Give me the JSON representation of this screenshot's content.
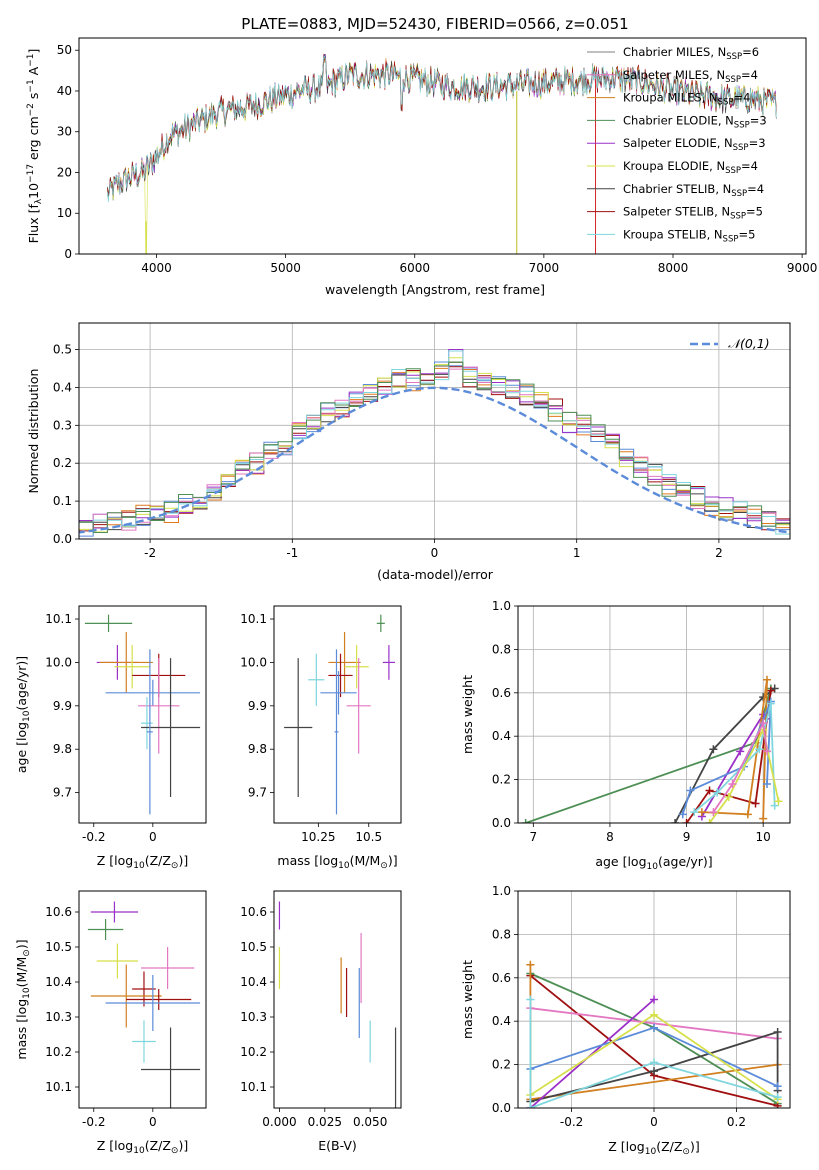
{
  "page_title": "PLATE=0883, MJD=52430, FIBERID=0566, z=0.051",
  "colors": {
    "Chabrier MILES": "#7f7f7f",
    "Salpeter MILES": "#e377c2",
    "Kroupa MILES": "#d17f1f",
    "Chabrier ELODIE": "#4e8f55",
    "Salpeter ELODIE": "#9b30c8",
    "Kroupa ELODIE": "#d6e04a",
    "Chabrier STELIB": "#444444",
    "Salpeter STELIB": "#a01010",
    "Kroupa STELIB": "#7fd6de",
    "extra_blue": "#5b8bd9",
    "extra_orange": "#e07a20",
    "normal_curve": "#5b8bd9"
  },
  "chart_data": [
    {
      "id": "spectrum",
      "type": "line",
      "title": "PLATE=0883, MJD=52430, FIBERID=0566, z=0.051",
      "xlabel": "wavelength [Angstrom, rest frame]",
      "ylabel": "Flux [f_λ10^-17 erg cm^-2 s^-1 A^-1]",
      "xlim": [
        3400,
        9030
      ],
      "ylim": [
        0,
        53
      ],
      "xticks": [
        4000,
        5000,
        6000,
        7000,
        8000,
        9000
      ],
      "yticks": [
        0,
        10,
        20,
        30,
        40,
        50
      ],
      "legend_position": "upper-right",
      "series": [
        {
          "name": "Chabrier MILES, N_SSP=6",
          "label_main": "Chabrier MILES, N",
          "label_sub": "SSP",
          "label_tail": "=6"
        },
        {
          "name": "Salpeter MILES, N_SSP=4",
          "label_main": "Salpeter MILES, N",
          "label_sub": "SSP",
          "label_tail": "=4"
        },
        {
          "name": "Kroupa MILES, N_SSP=4",
          "label_main": "Kroupa MILES, N",
          "label_sub": "SSP",
          "label_tail": "=4"
        },
        {
          "name": "Chabrier ELODIE, N_SSP=3",
          "label_main": "Chabrier ELODIE, N",
          "label_sub": "SSP",
          "label_tail": "=3"
        },
        {
          "name": "Salpeter ELODIE, N_SSP=3",
          "label_main": "Salpeter ELODIE, N",
          "label_sub": "SSP",
          "label_tail": "=3"
        },
        {
          "name": "Kroupa ELODIE, N_SSP=4",
          "label_main": "Kroupa ELODIE, N",
          "label_sub": "SSP",
          "label_tail": "=4"
        },
        {
          "name": "Chabrier STELIB, N_SSP=4",
          "label_main": "Chabrier STELIB, N",
          "label_sub": "SSP",
          "label_tail": "=4"
        },
        {
          "name": "Salpeter STELIB, N_SSP=5",
          "label_main": "Salpeter STELIB, N",
          "label_sub": "SSP",
          "label_tail": "=5"
        },
        {
          "name": "Kroupa STELIB, N_SSP=5",
          "label_main": "Kroupa STELIB, N",
          "label_sub": "SSP",
          "label_tail": "=5"
        }
      ],
      "continuum_shape": [
        [
          3600,
          14
        ],
        [
          3700,
          17
        ],
        [
          3800,
          19
        ],
        [
          3900,
          20
        ],
        [
          4000,
          24
        ],
        [
          4100,
          29
        ],
        [
          4300,
          32
        ],
        [
          4500,
          35
        ],
        [
          4700,
          36
        ],
        [
          4900,
          38
        ],
        [
          5100,
          40
        ],
        [
          5300,
          41
        ],
        [
          5500,
          44
        ],
        [
          5800,
          44
        ],
        [
          6000,
          43
        ],
        [
          6300,
          41
        ],
        [
          6600,
          41
        ],
        [
          7000,
          42
        ],
        [
          7400,
          43
        ],
        [
          7600,
          43
        ],
        [
          7800,
          42
        ],
        [
          8000,
          40
        ],
        [
          8200,
          39
        ],
        [
          8400,
          38
        ],
        [
          8600,
          38
        ],
        [
          8800,
          37
        ]
      ],
      "spikes": [
        [
          3920,
          0
        ],
        [
          6790,
          0
        ],
        [
          7400,
          0
        ]
      ]
    },
    {
      "id": "residuals",
      "type": "histogram",
      "xlabel": "(data-model)/error",
      "ylabel": "Normed distribution",
      "xlim": [
        -2.5,
        2.5
      ],
      "ylim": [
        0,
        0.57
      ],
      "xticks": [
        -2,
        -1,
        0,
        1,
        2
      ],
      "yticks": [
        0.0,
        0.1,
        0.2,
        0.3,
        0.4,
        0.5
      ],
      "grid": true,
      "legend_position": "upper-right",
      "normal_label": "𝒩(0,1)",
      "bin_width": 0.1,
      "bins_base": [
        0.02,
        0.02,
        0.03,
        0.03,
        0.04,
        0.05,
        0.05,
        0.06,
        0.06,
        0.07,
        0.09,
        0.1,
        0.13,
        0.15,
        0.18,
        0.2,
        0.23,
        0.25,
        0.28,
        0.31,
        0.33,
        0.35,
        0.37,
        0.38,
        0.4,
        0.42,
        0.42,
        0.43,
        0.45,
        0.47,
        0.43,
        0.42,
        0.41,
        0.4,
        0.38,
        0.36,
        0.34,
        0.31,
        0.3,
        0.28,
        0.25,
        0.22,
        0.19,
        0.17,
        0.14,
        0.12,
        0.11,
        0.09,
        0.08,
        0.07,
        0.06,
        0.05,
        0.04,
        0.04,
        0.03,
        0.03
      ]
    },
    {
      "id": "z-age",
      "type": "scatter",
      "xlabel": "Z [log10(Z/Z⊙)]",
      "ylabel": "age [log10(age/yr)]",
      "xlim": [
        -0.25,
        0.18
      ],
      "ylim": [
        9.63,
        10.13
      ],
      "xticks": [
        -0.2,
        0.0
      ],
      "yticks": [
        9.7,
        9.8,
        9.9,
        10.0,
        10.1
      ],
      "points": [
        {
          "x": -0.15,
          "y": 10.09,
          "xerr": 0.08,
          "yerr": 0.02,
          "color": "#4e8f55"
        },
        {
          "x": -0.12,
          "y": 10.0,
          "xerr": 0.07,
          "yerr": 0.04,
          "color": "#9b30c8"
        },
        {
          "x": -0.09,
          "y": 10.0,
          "xerr": 0.09,
          "yerr": 0.07,
          "color": "#d17f1f"
        },
        {
          "x": -0.07,
          "y": 9.99,
          "xerr": 0.06,
          "yerr": 0.05,
          "color": "#d6e04a"
        },
        {
          "x": 0.02,
          "y": 9.97,
          "xerr": 0.09,
          "yerr": 0.05,
          "color": "#a01010"
        },
        {
          "x": 0.0,
          "y": 9.93,
          "xerr": 0.16,
          "yerr": 0.03,
          "color": "#5b8bd9"
        },
        {
          "x": 0.02,
          "y": 9.9,
          "xerr": 0.07,
          "yerr": 0.11,
          "color": "#e377c2"
        },
        {
          "x": -0.02,
          "y": 9.86,
          "xerr": 0.02,
          "yerr": 0.06,
          "color": "#7fd6de"
        },
        {
          "x": 0.06,
          "y": 9.85,
          "xerr": 0.1,
          "yerr": 0.16,
          "color": "#444444"
        },
        {
          "x": -0.01,
          "y": 9.84,
          "xerr": 0.01,
          "yerr": 0.19,
          "color": "#5b8bd9"
        }
      ]
    },
    {
      "id": "mass-age",
      "type": "scatter",
      "xlabel": "mass [log10(M/M⊙)]",
      "ylabel": "",
      "xlim": [
        10.03,
        10.66
      ],
      "ylim": [
        9.63,
        10.13
      ],
      "xticks": [
        10.25,
        10.5
      ],
      "yticks": [
        9.7,
        9.8,
        9.9,
        10.0,
        10.1
      ],
      "points": [
        {
          "x": 10.56,
          "y": 10.09,
          "xerr": 0.02,
          "yerr": 0.02,
          "color": "#4e8f55"
        },
        {
          "x": 10.6,
          "y": 10.0,
          "xerr": 0.03,
          "yerr": 0.04,
          "color": "#9b30c8"
        },
        {
          "x": 10.38,
          "y": 10.0,
          "xerr": 0.08,
          "yerr": 0.07,
          "color": "#d17f1f"
        },
        {
          "x": 10.44,
          "y": 9.99,
          "xerr": 0.06,
          "yerr": 0.05,
          "color": "#d6e04a"
        },
        {
          "x": 10.36,
          "y": 9.97,
          "xerr": 0.06,
          "yerr": 0.05,
          "color": "#a01010"
        },
        {
          "x": 10.35,
          "y": 9.93,
          "xerr": 0.09,
          "yerr": 0.05,
          "color": "#5b8bd9"
        },
        {
          "x": 10.45,
          "y": 9.9,
          "xerr": 0.06,
          "yerr": 0.11,
          "color": "#e377c2"
        },
        {
          "x": 10.24,
          "y": 9.96,
          "xerr": 0.04,
          "yerr": 0.06,
          "color": "#7fd6de"
        },
        {
          "x": 10.15,
          "y": 9.85,
          "xerr": 0.07,
          "yerr": 0.16,
          "color": "#444444"
        },
        {
          "x": 10.34,
          "y": 9.84,
          "xerr": 0.01,
          "yerr": 0.19,
          "color": "#5b8bd9"
        }
      ]
    },
    {
      "id": "age-weight",
      "type": "line",
      "xlabel": "age [log10(age/yr)]",
      "ylabel": "mass weight",
      "xlim": [
        6.8,
        10.35
      ],
      "ylim": [
        0,
        1.0
      ],
      "xticks": [
        7,
        8,
        9,
        10
      ],
      "yticks": [
        0.0,
        0.2,
        0.4,
        0.6,
        0.8,
        1.0
      ],
      "grid": true,
      "series": [
        {
          "color": "#4e8f55",
          "points": [
            [
              6.9,
              0.0
            ],
            [
              9.9,
              0.37
            ],
            [
              10.1,
              0.62
            ]
          ]
        },
        {
          "color": "#444444",
          "points": [
            [
              8.85,
              0.0
            ],
            [
              9.35,
              0.34
            ],
            [
              10.0,
              0.58
            ],
            [
              10.15,
              0.62
            ]
          ]
        },
        {
          "color": "#9b30c8",
          "points": [
            [
              9.2,
              0.03
            ],
            [
              9.7,
              0.33
            ],
            [
              10.0,
              0.5
            ],
            [
              10.05,
              0.48
            ]
          ]
        },
        {
          "color": "#a01010",
          "points": [
            [
              9.0,
              0.0
            ],
            [
              9.3,
              0.15
            ],
            [
              9.9,
              0.09
            ],
            [
              10.1,
              0.61
            ]
          ]
        },
        {
          "color": "#d17f1f",
          "points": [
            [
              9.2,
              0.05
            ],
            [
              9.8,
              0.04
            ],
            [
              10.05,
              0.66
            ],
            [
              10.0,
              0.02
            ]
          ]
        },
        {
          "color": "#5b8bd9",
          "points": [
            [
              8.95,
              0.04
            ],
            [
              9.05,
              0.15
            ],
            [
              9.75,
              0.26
            ],
            [
              10.1,
              0.56
            ],
            [
              10.05,
              0.18
            ]
          ]
        },
        {
          "color": "#7fd6de",
          "points": [
            [
              9.1,
              0.05
            ],
            [
              9.4,
              0.14
            ],
            [
              9.95,
              0.34
            ],
            [
              10.1,
              0.55
            ],
            [
              10.15,
              0.08
            ]
          ]
        },
        {
          "color": "#d6e04a",
          "points": [
            [
              9.3,
              0.0
            ],
            [
              9.55,
              0.12
            ],
            [
              10.0,
              0.43
            ],
            [
              10.2,
              0.1
            ]
          ]
        },
        {
          "color": "#e377c2",
          "points": [
            [
              9.35,
              0.05
            ],
            [
              9.6,
              0.18
            ],
            [
              10.0,
              0.46
            ],
            [
              10.05,
              0.33
            ]
          ]
        }
      ]
    },
    {
      "id": "z-mass",
      "type": "scatter",
      "xlabel": "Z [log10(Z/Z⊙)]",
      "ylabel": "mass [log10(M/M⊙)]",
      "xlim": [
        -0.25,
        0.18
      ],
      "ylim": [
        10.04,
        10.66
      ],
      "xticks": [
        -0.2,
        0.0
      ],
      "yticks": [
        10.1,
        10.2,
        10.3,
        10.4,
        10.5,
        10.6
      ],
      "points": [
        {
          "x": -0.13,
          "y": 10.6,
          "xerr": 0.08,
          "yerr": 0.03,
          "color": "#9b30c8"
        },
        {
          "x": -0.16,
          "y": 10.55,
          "xerr": 0.06,
          "yerr": 0.03,
          "color": "#4e8f55"
        },
        {
          "x": -0.12,
          "y": 10.46,
          "xerr": 0.07,
          "yerr": 0.05,
          "color": "#d6e04a"
        },
        {
          "x": 0.05,
          "y": 10.44,
          "xerr": 0.09,
          "yerr": 0.06,
          "color": "#e377c2"
        },
        {
          "x": -0.03,
          "y": 10.38,
          "xerr": 0.04,
          "yerr": 0.05,
          "color": "#a01010"
        },
        {
          "x": -0.09,
          "y": 10.36,
          "xerr": 0.12,
          "yerr": 0.09,
          "color": "#d17f1f"
        },
        {
          "x": 0.02,
          "y": 10.35,
          "xerr": 0.11,
          "yerr": 0.03,
          "color": "#a01010"
        },
        {
          "x": 0.0,
          "y": 10.34,
          "xerr": 0.16,
          "yerr": 0.08,
          "color": "#5b8bd9"
        },
        {
          "x": -0.03,
          "y": 10.23,
          "xerr": 0.04,
          "yerr": 0.06,
          "color": "#7fd6de"
        },
        {
          "x": 0.06,
          "y": 10.15,
          "xerr": 0.1,
          "yerr": 0.12,
          "color": "#444444"
        }
      ]
    },
    {
      "id": "ebv-mass",
      "type": "scatter",
      "xlabel": "E(B-V)",
      "ylabel": "",
      "xlim": [
        -0.003,
        0.067
      ],
      "ylim": [
        10.04,
        10.66
      ],
      "xticks": [
        0.0,
        0.025,
        0.05
      ],
      "xtick_labels": [
        "0.000",
        "0.025",
        "0.050"
      ],
      "yticks": [
        10.1,
        10.2,
        10.3,
        10.4,
        10.5,
        10.6
      ],
      "points": [
        {
          "x": 0.0,
          "y": 10.59,
          "yerr": 0.04,
          "color": "#9b30c8"
        },
        {
          "x": 0.0,
          "y": 10.44,
          "yerr": 0.06,
          "color": "#d6e04a"
        },
        {
          "x": 0.034,
          "y": 10.39,
          "yerr": 0.08,
          "color": "#d17f1f"
        },
        {
          "x": 0.037,
          "y": 10.37,
          "yerr": 0.07,
          "color": "#a01010"
        },
        {
          "x": 0.044,
          "y": 10.34,
          "yerr": 0.1,
          "color": "#5b8bd9"
        },
        {
          "x": 0.045,
          "y": 10.44,
          "yerr": 0.1,
          "color": "#e377c2"
        },
        {
          "x": 0.05,
          "y": 10.23,
          "yerr": 0.06,
          "color": "#7fd6de"
        },
        {
          "x": 0.064,
          "y": 10.15,
          "yerr": 0.12,
          "color": "#444444"
        }
      ]
    },
    {
      "id": "z-weight",
      "type": "line",
      "xlabel": "Z [log10(Z/Z⊙)]",
      "ylabel": "mass weight",
      "xlim": [
        -0.33,
        0.33
      ],
      "ylim": [
        0,
        1.0
      ],
      "xticks": [
        -0.2,
        0.0,
        0.2
      ],
      "yticks": [
        0.0,
        0.2,
        0.4,
        0.6,
        0.8,
        1.0
      ],
      "grid": true,
      "series": [
        {
          "color": "#4e8f55",
          "points": [
            [
              -0.3,
              0.62
            ],
            [
              0.0,
              0.37
            ],
            [
              0.3,
              0.02
            ]
          ]
        },
        {
          "color": "#a01010",
          "points": [
            [
              -0.3,
              0.61
            ],
            [
              0.0,
              0.15
            ],
            [
              0.3,
              0.01
            ]
          ]
        },
        {
          "color": "#d17f1f",
          "points": [
            [
              -0.3,
              0.66
            ],
            [
              -0.3,
              0.04
            ],
            [
              0.3,
              0.2
            ]
          ]
        },
        {
          "color": "#e377c2",
          "points": [
            [
              -0.3,
              0.46
            ],
            [
              0.3,
              0.32
            ]
          ]
        },
        {
          "color": "#444444",
          "points": [
            [
              -0.3,
              0.03
            ],
            [
              0.0,
              0.17
            ],
            [
              0.3,
              0.35
            ],
            [
              0.3,
              0.08
            ]
          ]
        },
        {
          "color": "#9b30c8",
          "points": [
            [
              -0.3,
              0.0
            ],
            [
              0.0,
              0.5
            ]
          ]
        },
        {
          "color": "#5b8bd9",
          "points": [
            [
              -0.3,
              0.18
            ],
            [
              0.0,
              0.37
            ],
            [
              0.3,
              0.1
            ]
          ]
        },
        {
          "color": "#d6e04a",
          "points": [
            [
              -0.3,
              0.06
            ],
            [
              0.0,
              0.43
            ],
            [
              0.3,
              0.04
            ]
          ]
        },
        {
          "color": "#7fd6de",
          "points": [
            [
              -0.3,
              0.5
            ],
            [
              -0.3,
              0.0
            ],
            [
              0.0,
              0.21
            ],
            [
              0.3,
              0.05
            ]
          ]
        }
      ]
    }
  ]
}
